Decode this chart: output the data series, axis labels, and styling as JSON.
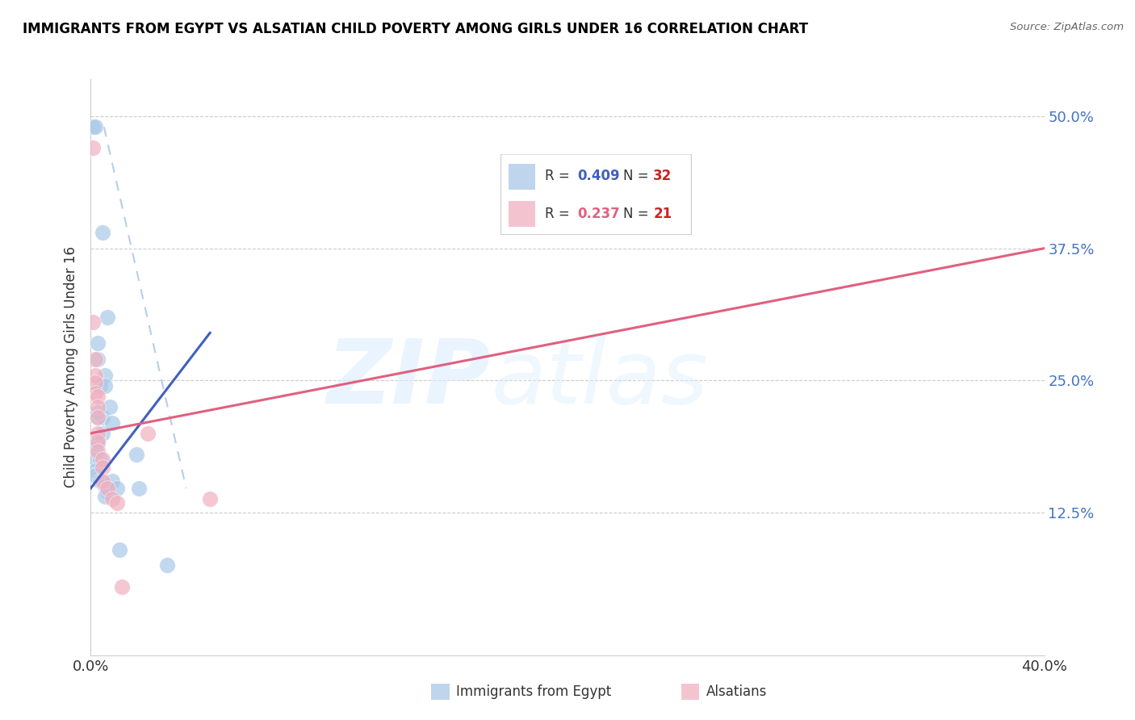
{
  "title": "IMMIGRANTS FROM EGYPT VS ALSATIAN CHILD POVERTY AMONG GIRLS UNDER 16 CORRELATION CHART",
  "source": "Source: ZipAtlas.com",
  "ylabel": "Child Poverty Among Girls Under 16",
  "ytick_values": [
    0.0,
    0.125,
    0.25,
    0.375,
    0.5
  ],
  "ytick_labels": [
    "",
    "12.5%",
    "25.0%",
    "37.5%",
    "50.0%"
  ],
  "xlim": [
    0.0,
    0.4
  ],
  "ylim": [
    -0.01,
    0.535
  ],
  "color_blue": "#a8c8e8",
  "color_pink": "#f0b0c0",
  "color_blue_line": "#4060c0",
  "color_pink_line": "#e06080",
  "color_dashed": "#b0c8e8",
  "blue_points": [
    [
      0.001,
      0.49
    ],
    [
      0.002,
      0.49
    ],
    [
      0.005,
      0.39
    ],
    [
      0.007,
      0.31
    ],
    [
      0.003,
      0.285
    ],
    [
      0.003,
      0.27
    ],
    [
      0.006,
      0.255
    ],
    [
      0.004,
      0.245
    ],
    [
      0.006,
      0.245
    ],
    [
      0.003,
      0.215
    ],
    [
      0.005,
      0.215
    ],
    [
      0.003,
      0.22
    ],
    [
      0.005,
      0.2
    ],
    [
      0.003,
      0.195
    ],
    [
      0.003,
      0.19
    ],
    [
      0.002,
      0.185
    ],
    [
      0.002,
      0.175
    ],
    [
      0.004,
      0.175
    ],
    [
      0.002,
      0.165
    ],
    [
      0.002,
      0.16
    ],
    [
      0.004,
      0.155
    ],
    [
      0.006,
      0.15
    ],
    [
      0.007,
      0.145
    ],
    [
      0.006,
      0.14
    ],
    [
      0.008,
      0.225
    ],
    [
      0.009,
      0.21
    ],
    [
      0.009,
      0.155
    ],
    [
      0.011,
      0.148
    ],
    [
      0.012,
      0.09
    ],
    [
      0.019,
      0.18
    ],
    [
      0.02,
      0.148
    ],
    [
      0.032,
      0.075
    ]
  ],
  "pink_points": [
    [
      0.001,
      0.47
    ],
    [
      0.001,
      0.305
    ],
    [
      0.002,
      0.27
    ],
    [
      0.002,
      0.255
    ],
    [
      0.002,
      0.248
    ],
    [
      0.002,
      0.238
    ],
    [
      0.003,
      0.235
    ],
    [
      0.003,
      0.225
    ],
    [
      0.003,
      0.215
    ],
    [
      0.003,
      0.2
    ],
    [
      0.003,
      0.192
    ],
    [
      0.003,
      0.183
    ],
    [
      0.005,
      0.175
    ],
    [
      0.005,
      0.168
    ],
    [
      0.005,
      0.155
    ],
    [
      0.007,
      0.148
    ],
    [
      0.009,
      0.138
    ],
    [
      0.011,
      0.134
    ],
    [
      0.013,
      0.055
    ],
    [
      0.024,
      0.2
    ],
    [
      0.05,
      0.138
    ]
  ],
  "blue_line_x": [
    0.0,
    0.05
  ],
  "blue_line_y": [
    0.148,
    0.295
  ],
  "pink_line_x": [
    0.0,
    0.4
  ],
  "pink_line_y": [
    0.2,
    0.375
  ],
  "dashed_line_x": [
    0.0055,
    0.04
  ],
  "dashed_line_y": [
    0.49,
    0.148
  ]
}
